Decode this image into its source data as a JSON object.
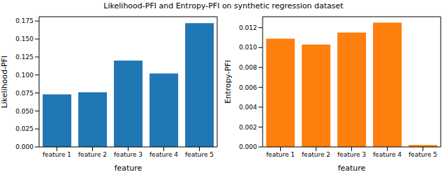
{
  "title": "Likelihood-PFI and Entropy-PFI on synthetic regression dataset",
  "chart_data": [
    {
      "type": "bar",
      "categories": [
        "feature 1",
        "feature 2",
        "feature 3",
        "feature 4",
        "feature 5"
      ],
      "values": [
        0.073,
        0.076,
        0.12,
        0.102,
        0.172
      ],
      "color": "#1f77b4",
      "x_label": "feature",
      "y_label": "Likelihood-PFI",
      "ylim": [
        0,
        0.181
      ],
      "yticks": [
        {
          "value": 0,
          "label": "0.000"
        },
        {
          "value": 0.025,
          "label": "0.025"
        },
        {
          "value": 0.05,
          "label": "0.050"
        },
        {
          "value": 0.075,
          "label": "0.075"
        },
        {
          "value": 0.1,
          "label": "0.100"
        },
        {
          "value": 0.125,
          "label": "0.125"
        },
        {
          "value": 0.15,
          "label": "0.150"
        },
        {
          "value": 0.175,
          "label": "0.175"
        }
      ],
      "grid": false
    },
    {
      "type": "bar",
      "categories": [
        "feature 1",
        "feature 2",
        "feature 3",
        "feature 4",
        "feature 5"
      ],
      "values": [
        0.0109,
        0.0103,
        0.0115,
        0.0125,
        0.0002
      ],
      "color": "#ff7f0e",
      "x_label": "feature",
      "y_label": "Entropy-PFI",
      "ylim": [
        0,
        0.0131
      ],
      "yticks": [
        {
          "value": 0,
          "label": "0.000"
        },
        {
          "value": 0.002,
          "label": "0.002"
        },
        {
          "value": 0.004,
          "label": "0.004"
        },
        {
          "value": 0.006,
          "label": "0.006"
        },
        {
          "value": 0.008,
          "label": "0.008"
        },
        {
          "value": 0.01,
          "label": "0.010"
        },
        {
          "value": 0.012,
          "label": "0.012"
        }
      ],
      "grid": false
    }
  ]
}
